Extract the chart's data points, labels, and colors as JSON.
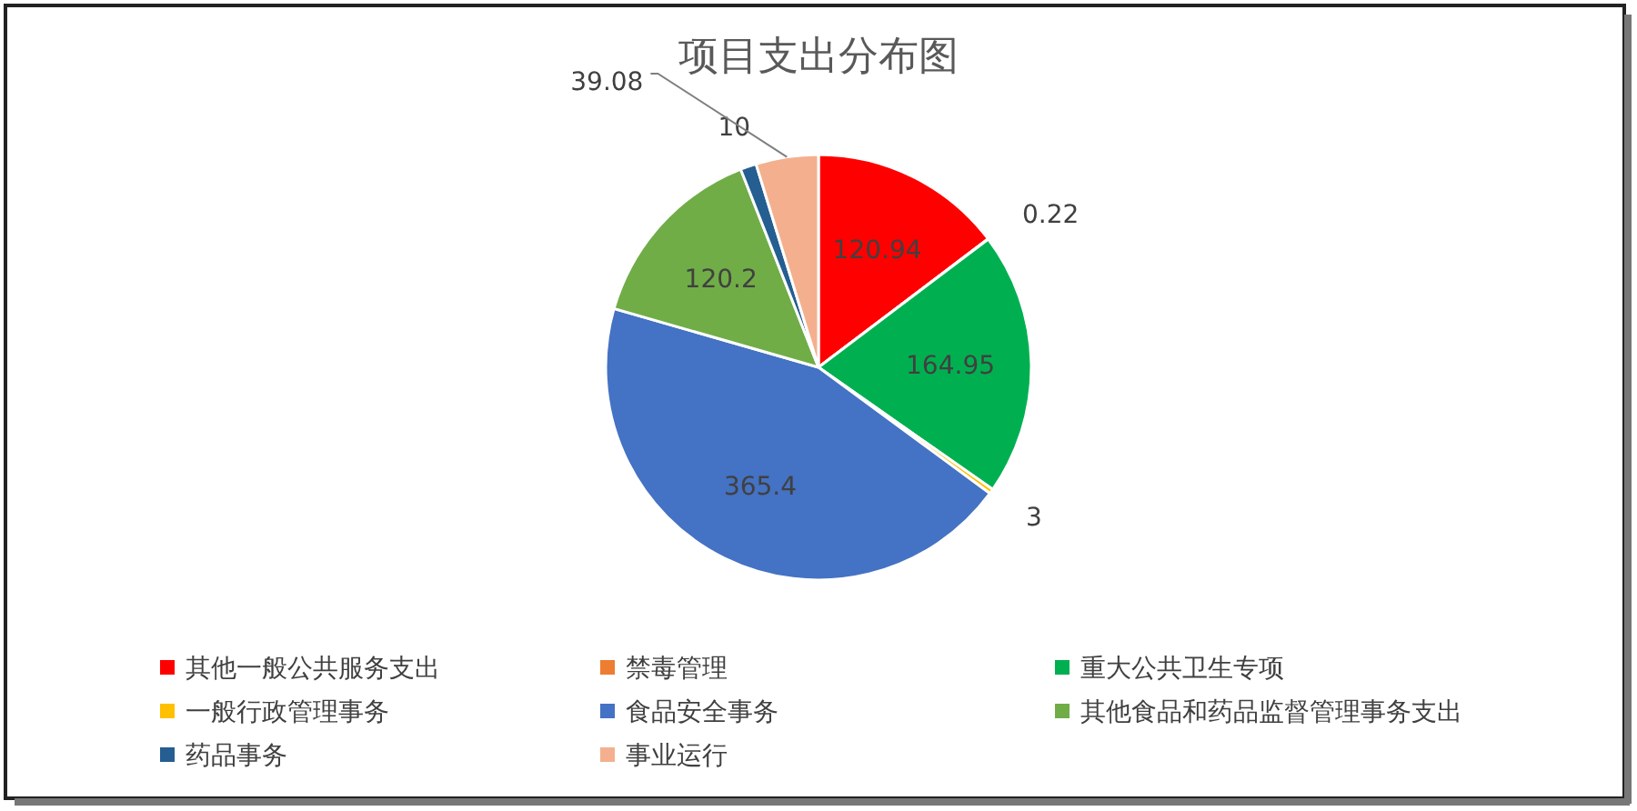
{
  "chart_data": {
    "type": "pie",
    "title": "项目支出分布图",
    "categories": [
      "其他一般公共服务支出",
      "禁毒管理",
      "重大公共卫生专项",
      "一般行政管理事务",
      "食品安全事务",
      "其他食品和药品监督管理事务支出",
      "药品事务",
      "事业运行"
    ],
    "values": [
      120.94,
      0.22,
      164.95,
      3,
      365.4,
      120.2,
      10,
      39.08
    ],
    "colors": [
      "#ff0000",
      "#ed7d31",
      "#00b050",
      "#ffc000",
      "#4472c4",
      "#70ad47",
      "#255e91",
      "#f4b08e"
    ],
    "data_labels": true,
    "legend": "bottom"
  }
}
